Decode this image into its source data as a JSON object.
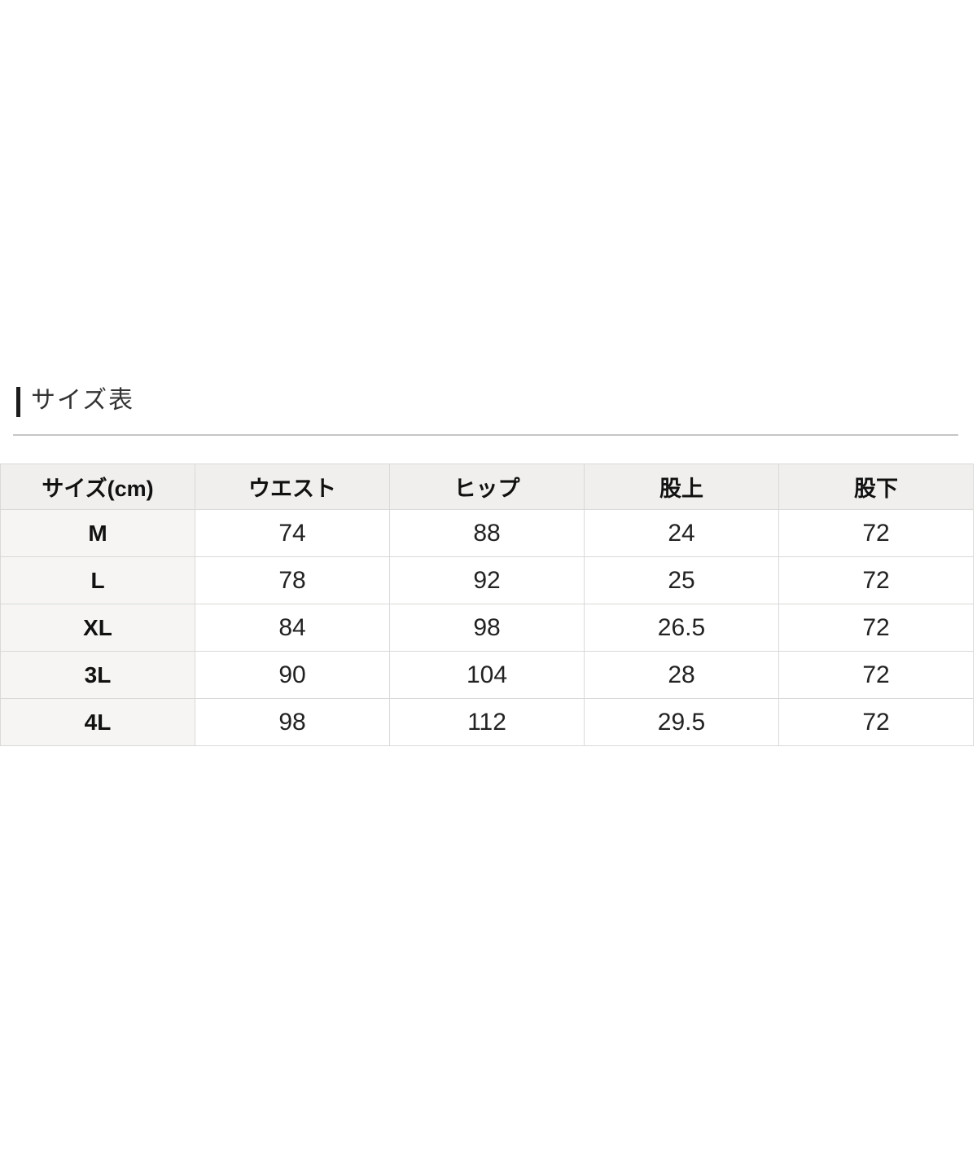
{
  "section": {
    "title": "サイズ表"
  },
  "size_table": {
    "columns": [
      "サイズ(cm)",
      "ウエスト",
      "ヒップ",
      "股上",
      "股下"
    ],
    "rows": [
      {
        "label": "M",
        "values": [
          "74",
          "88",
          "24",
          "72"
        ]
      },
      {
        "label": "L",
        "values": [
          "78",
          "92",
          "25",
          "72"
        ]
      },
      {
        "label": "XL",
        "values": [
          "84",
          "98",
          "26.5",
          "72"
        ]
      },
      {
        "label": "3L",
        "values": [
          "90",
          "104",
          "28",
          "72"
        ]
      },
      {
        "label": "4L",
        "values": [
          "98",
          "112",
          "29.5",
          "72"
        ]
      }
    ]
  },
  "colors": {
    "accent_bar": "#1c1c1c",
    "divider": "#c6c6c4",
    "header_bg": "#f0efed",
    "first_column_bg": "#f6f5f3",
    "cell_bg": "#ffffff",
    "border": "#d9d9d7",
    "text": "#222222"
  }
}
